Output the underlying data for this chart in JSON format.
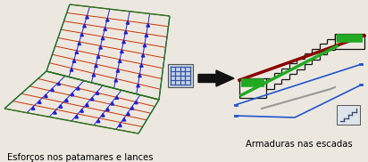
{
  "bg_color": "#ece8e0",
  "left_caption": "Esforços nos patamares e lances",
  "right_caption": "Armaduras nas escadas",
  "caption_fontsize": 7.2,
  "caption_color": "#000000",
  "arrow_color": "#111111",
  "fig_width": 4.12,
  "fig_height": 1.82,
  "dpi": 100,
  "grid_color_blue": "#2222cc",
  "grid_color_red": "#cc3300",
  "grid_color_green": "#227722",
  "stair_step_color": "#111111",
  "stair_bar_green": "#22aa22",
  "stair_bar_dark": "#660000",
  "stair_bar_darkred": "#8B0000",
  "stair_bar_blue": "#2255cc",
  "stair_bar_gray": "#999999",
  "icon_bg": "#c8d4e0",
  "icon_border": "#888888",
  "icon_grid": "#3355aa"
}
